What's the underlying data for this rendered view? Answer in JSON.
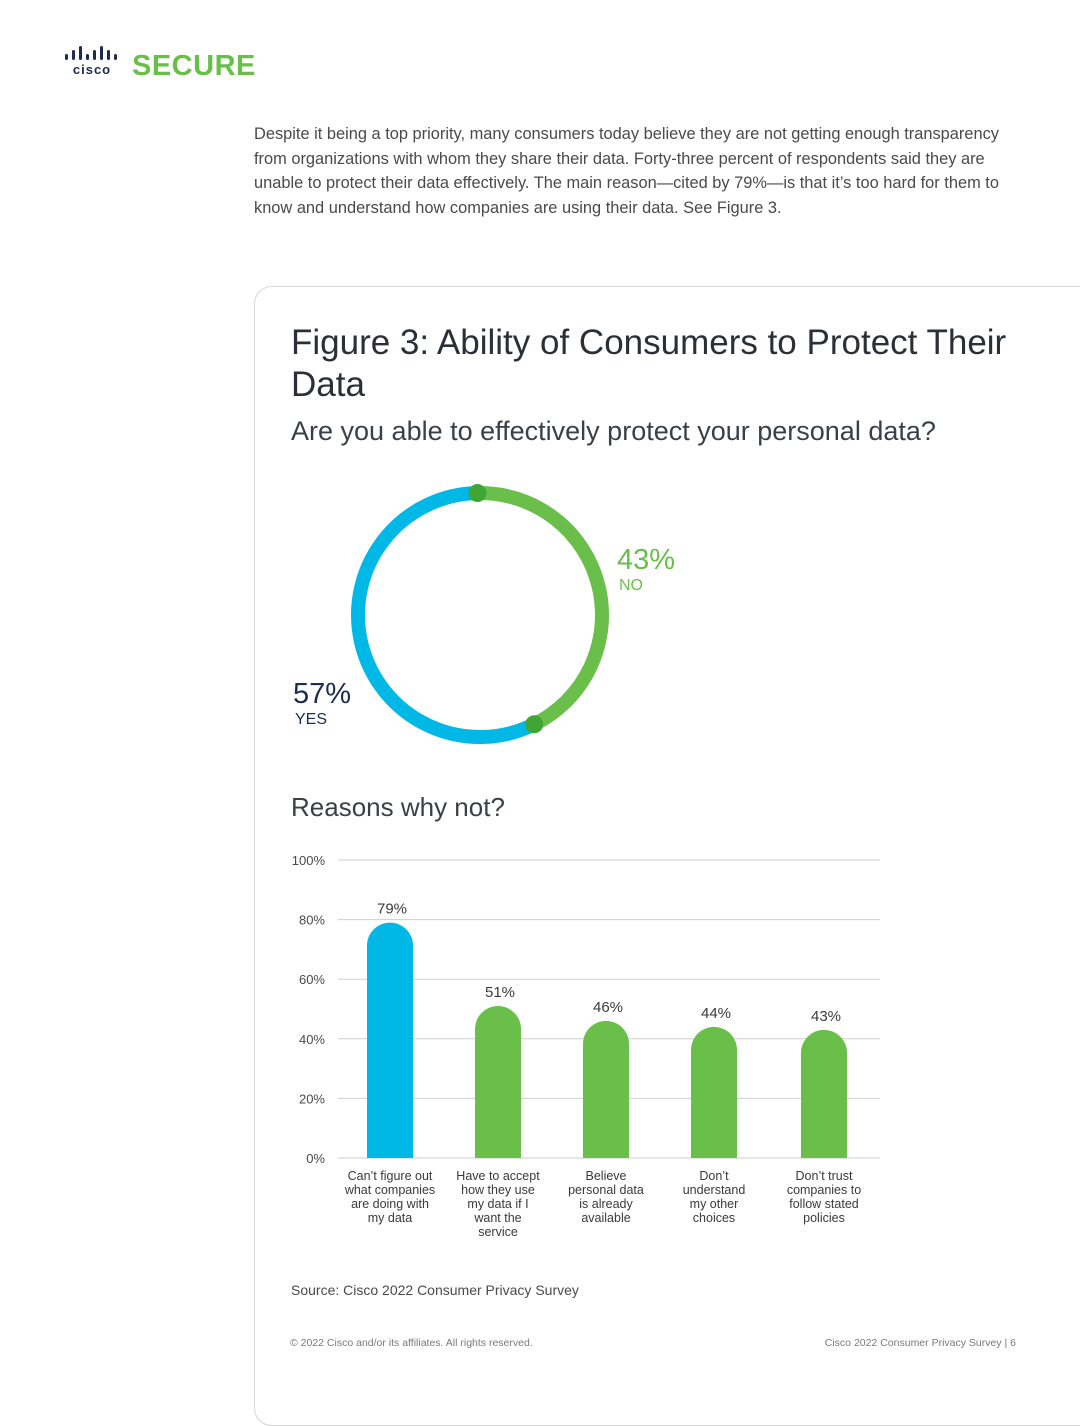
{
  "header": {
    "brand_word": "cisco",
    "product": "SECURE"
  },
  "intro_text": "Despite it being a top priority, many consumers today believe they are not getting enough transparency from organizations with whom they share their data. Forty-three percent of respondents said they are unable to protect their data effectively. The main reason—cited by 79%—is that it’s too hard for them to know and understand how companies are using their data. See Figure 3.",
  "figure": {
    "title": "Figure 3: Ability of Consumers to Protect Their Data",
    "subtitle": "Are you able to effectively protect your personal data?",
    "reasons_title": "Reasons why not?",
    "source": "Source: Cisco 2022 Consumer Privacy Survey"
  },
  "colors": {
    "blue": "#00b8e6",
    "green": "#6abf4b",
    "dark_green": "#3fa535",
    "navy": "#1d2b4f"
  },
  "chart_data": [
    {
      "type": "pie",
      "title": "Are you able to effectively protect your personal data?",
      "slices": [
        {
          "label": "NO",
          "value": 43,
          "display": "43%",
          "color": "#6abf4b"
        },
        {
          "label": "YES",
          "value": 57,
          "display": "57%",
          "color": "#00b8e6"
        }
      ]
    },
    {
      "type": "bar",
      "title": "Reasons why not?",
      "categories": [
        "Can't figure out what companies are doing with my data",
        "Have to accept how they use my data if I want the service",
        "Believe personal data is already available",
        "Don't understand my other choices",
        "Don't trust companies to follow stated policies"
      ],
      "category_lines": [
        [
          "Can’t figure out",
          "what companies",
          "are doing with",
          "my data"
        ],
        [
          "Have to accept",
          "how they use",
          "my data if I",
          "want the",
          "service"
        ],
        [
          "Believe",
          "personal data",
          "is already",
          "available"
        ],
        [
          "Don’t",
          "understand",
          "my other",
          "choices"
        ],
        [
          "Don’t trust",
          "companies to",
          "follow stated",
          "policies"
        ]
      ],
      "values": [
        79,
        51,
        46,
        44,
        43
      ],
      "value_labels": [
        "79%",
        "51%",
        "46%",
        "44%",
        "43%"
      ],
      "bar_colors": [
        "#00b8e6",
        "#6abf4b",
        "#6abf4b",
        "#6abf4b",
        "#6abf4b"
      ],
      "yticks": [
        0,
        20,
        40,
        60,
        80,
        100
      ],
      "ytick_labels": [
        "0%",
        "20%",
        "40%",
        "60%",
        "80%",
        "100%"
      ],
      "ylim": [
        0,
        100
      ],
      "grid": true
    }
  ],
  "footer": {
    "copyright": "© 2022 Cisco and/or its affiliates. All rights reserved.",
    "doc_title": "Cisco 2022 Consumer Privacy Survey | 6"
  }
}
